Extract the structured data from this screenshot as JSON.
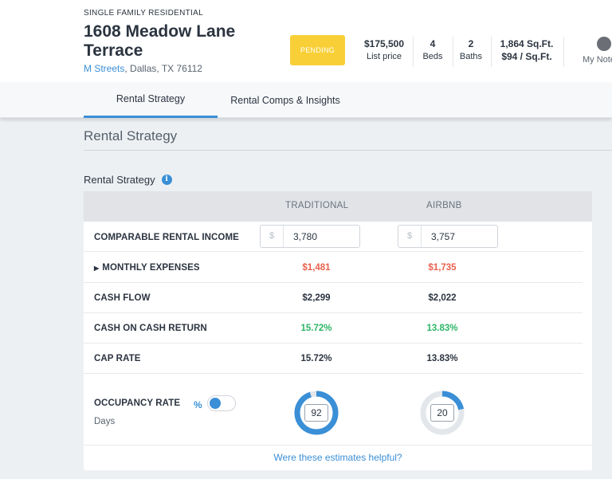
{
  "property": {
    "type": "SINGLE FAMILY RESIDENTIAL",
    "title": "1608 Meadow Lane Terrace",
    "neighborhood": "M Streets",
    "address_rest": ", Dallas, TX 76112",
    "status": "PENDING",
    "stats": [
      {
        "value": "$175,500",
        "label": "List price"
      },
      {
        "value": "4",
        "label": "Beds"
      },
      {
        "value": "2",
        "label": "Baths"
      },
      {
        "value": "1,864 Sq.Ft.",
        "label": "$94 / Sq.Ft."
      }
    ],
    "my_notes": "My Notes"
  },
  "tabs": [
    {
      "label": "Rental Strategy",
      "active": true
    },
    {
      "label": "Rental Comps & Insights",
      "active": false
    }
  ],
  "section": {
    "title": "Rental Strategy",
    "subtitle": "Rental Strategy",
    "info_icon": "i"
  },
  "table": {
    "columns": [
      "TRADITIONAL",
      "AIRBNB"
    ],
    "currency_symbol": "$",
    "rows": {
      "income": {
        "label": "COMPARABLE RENTAL INCOME",
        "traditional": "3,780",
        "airbnb": "3,757"
      },
      "expenses": {
        "label": "MONTHLY EXPENSES",
        "traditional": "$1,481",
        "airbnb": "$1,735"
      },
      "cash_flow": {
        "label": "CASH FLOW",
        "traditional": "$2,299",
        "airbnb": "$2,022"
      },
      "coc": {
        "label": "CASH ON CASH RETURN",
        "traditional": "15.72%",
        "airbnb": "13.83%"
      },
      "cap_rate": {
        "label": "CAP RATE",
        "traditional": "15.72%",
        "airbnb": "13.83%"
      }
    },
    "occupancy": {
      "label": "OCCUPANCY RATE",
      "unit_toggle": "%",
      "sub_label": "Days",
      "traditional_days": "92",
      "airbnb_days": "20",
      "traditional_fraction": 0.95,
      "airbnb_fraction": 0.22
    }
  },
  "footer": {
    "helpful": "Were these estimates helpful?"
  },
  "colors": {
    "accent": "#3a8fd6",
    "pending": "#f8cf36",
    "negative": "#e8604c",
    "positive": "#2cb567"
  }
}
